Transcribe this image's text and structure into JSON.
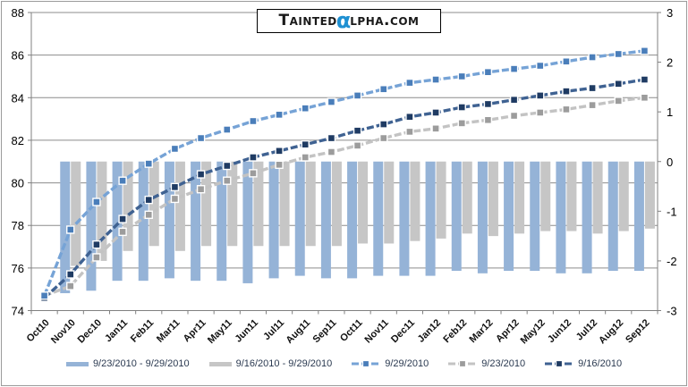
{
  "logo": {
    "pre": "Tainted",
    "alpha": "α",
    "post": "lpha.com"
  },
  "chart_data": {
    "type": "combo-bar-line",
    "title": "",
    "xlabel": "",
    "ylabel": "",
    "grid": true,
    "legend_position": "bottom",
    "categories": [
      "Oct10",
      "Nov10",
      "Dec10",
      "Jan11",
      "Feb11",
      "Mar11",
      "Apr11",
      "May11",
      "Jun11",
      "Jul11",
      "Aug11",
      "Sep11",
      "Oct11",
      "Nov11",
      "Dec11",
      "Jan12",
      "Feb12",
      "Mar12",
      "Apr12",
      "May12",
      "Jun12",
      "Jul12",
      "Aug12",
      "Sep12"
    ],
    "left_axis": {
      "min": 74,
      "max": 88,
      "step": 2,
      "ticks": [
        88,
        86,
        84,
        82,
        80,
        78,
        76,
        74
      ]
    },
    "right_axis": {
      "min": -3,
      "max": 3,
      "step": 1,
      "ticks": [
        3,
        2,
        1,
        0,
        -1,
        -2,
        -3
      ]
    },
    "colors": {
      "grid": "#8c8c8c",
      "axis": "#808080",
      "tick_label": "#000000"
    },
    "series": [
      {
        "name": "9/23/2010 - 9/29/2010",
        "type": "bar",
        "axis": "right",
        "color": "#95b3d7",
        "values": [
          null,
          -2.65,
          -2.6,
          -2.4,
          -2.4,
          -2.35,
          -2.4,
          -2.4,
          -2.45,
          -2.35,
          -2.3,
          -2.35,
          -2.35,
          -2.3,
          -2.3,
          -2.3,
          -2.2,
          -2.25,
          -2.2,
          -2.2,
          -2.25,
          -2.25,
          -2.2,
          -2.2
        ]
      },
      {
        "name": "9/16/2010 - 9/29/2010",
        "type": "bar",
        "axis": "right",
        "color": "#c6c6c6",
        "values": [
          null,
          -2.1,
          -2.0,
          -1.8,
          -1.7,
          -1.8,
          -1.7,
          -1.7,
          -1.7,
          -1.7,
          -1.7,
          -1.7,
          -1.65,
          -1.65,
          -1.6,
          -1.55,
          -1.45,
          -1.5,
          -1.45,
          -1.4,
          -1.4,
          -1.45,
          -1.4,
          -1.35
        ]
      },
      {
        "name": "9/29/2010",
        "type": "line",
        "axis": "left",
        "color": "#76a3d6",
        "marker": "#4a7eba",
        "values": [
          74.7,
          77.8,
          79.1,
          80.1,
          80.9,
          81.6,
          82.1,
          82.5,
          82.9,
          83.2,
          83.5,
          83.8,
          84.1,
          84.4,
          84.7,
          84.85,
          85.0,
          85.2,
          85.35,
          85.5,
          85.7,
          85.9,
          86.05,
          86.2
        ]
      },
      {
        "name": "9/23/2010",
        "type": "line",
        "axis": "left",
        "color": "#c3c3c3",
        "marker": "#9c9c9c",
        "values": [
          74.7,
          75.15,
          76.5,
          77.7,
          78.5,
          79.25,
          79.7,
          80.1,
          80.45,
          80.85,
          81.2,
          81.45,
          81.75,
          82.1,
          82.4,
          82.55,
          82.8,
          82.95,
          83.15,
          83.3,
          83.45,
          83.65,
          83.85,
          84.0
        ]
      },
      {
        "name": "9/16/2010",
        "type": "line",
        "axis": "left",
        "color": "#3f6292",
        "marker": "#1f3b63",
        "values": [
          74.6,
          75.7,
          77.1,
          78.3,
          79.2,
          79.8,
          80.4,
          80.8,
          81.2,
          81.5,
          81.8,
          82.1,
          82.45,
          82.75,
          83.1,
          83.3,
          83.55,
          83.7,
          83.9,
          84.1,
          84.3,
          84.45,
          84.65,
          84.85
        ]
      }
    ]
  }
}
